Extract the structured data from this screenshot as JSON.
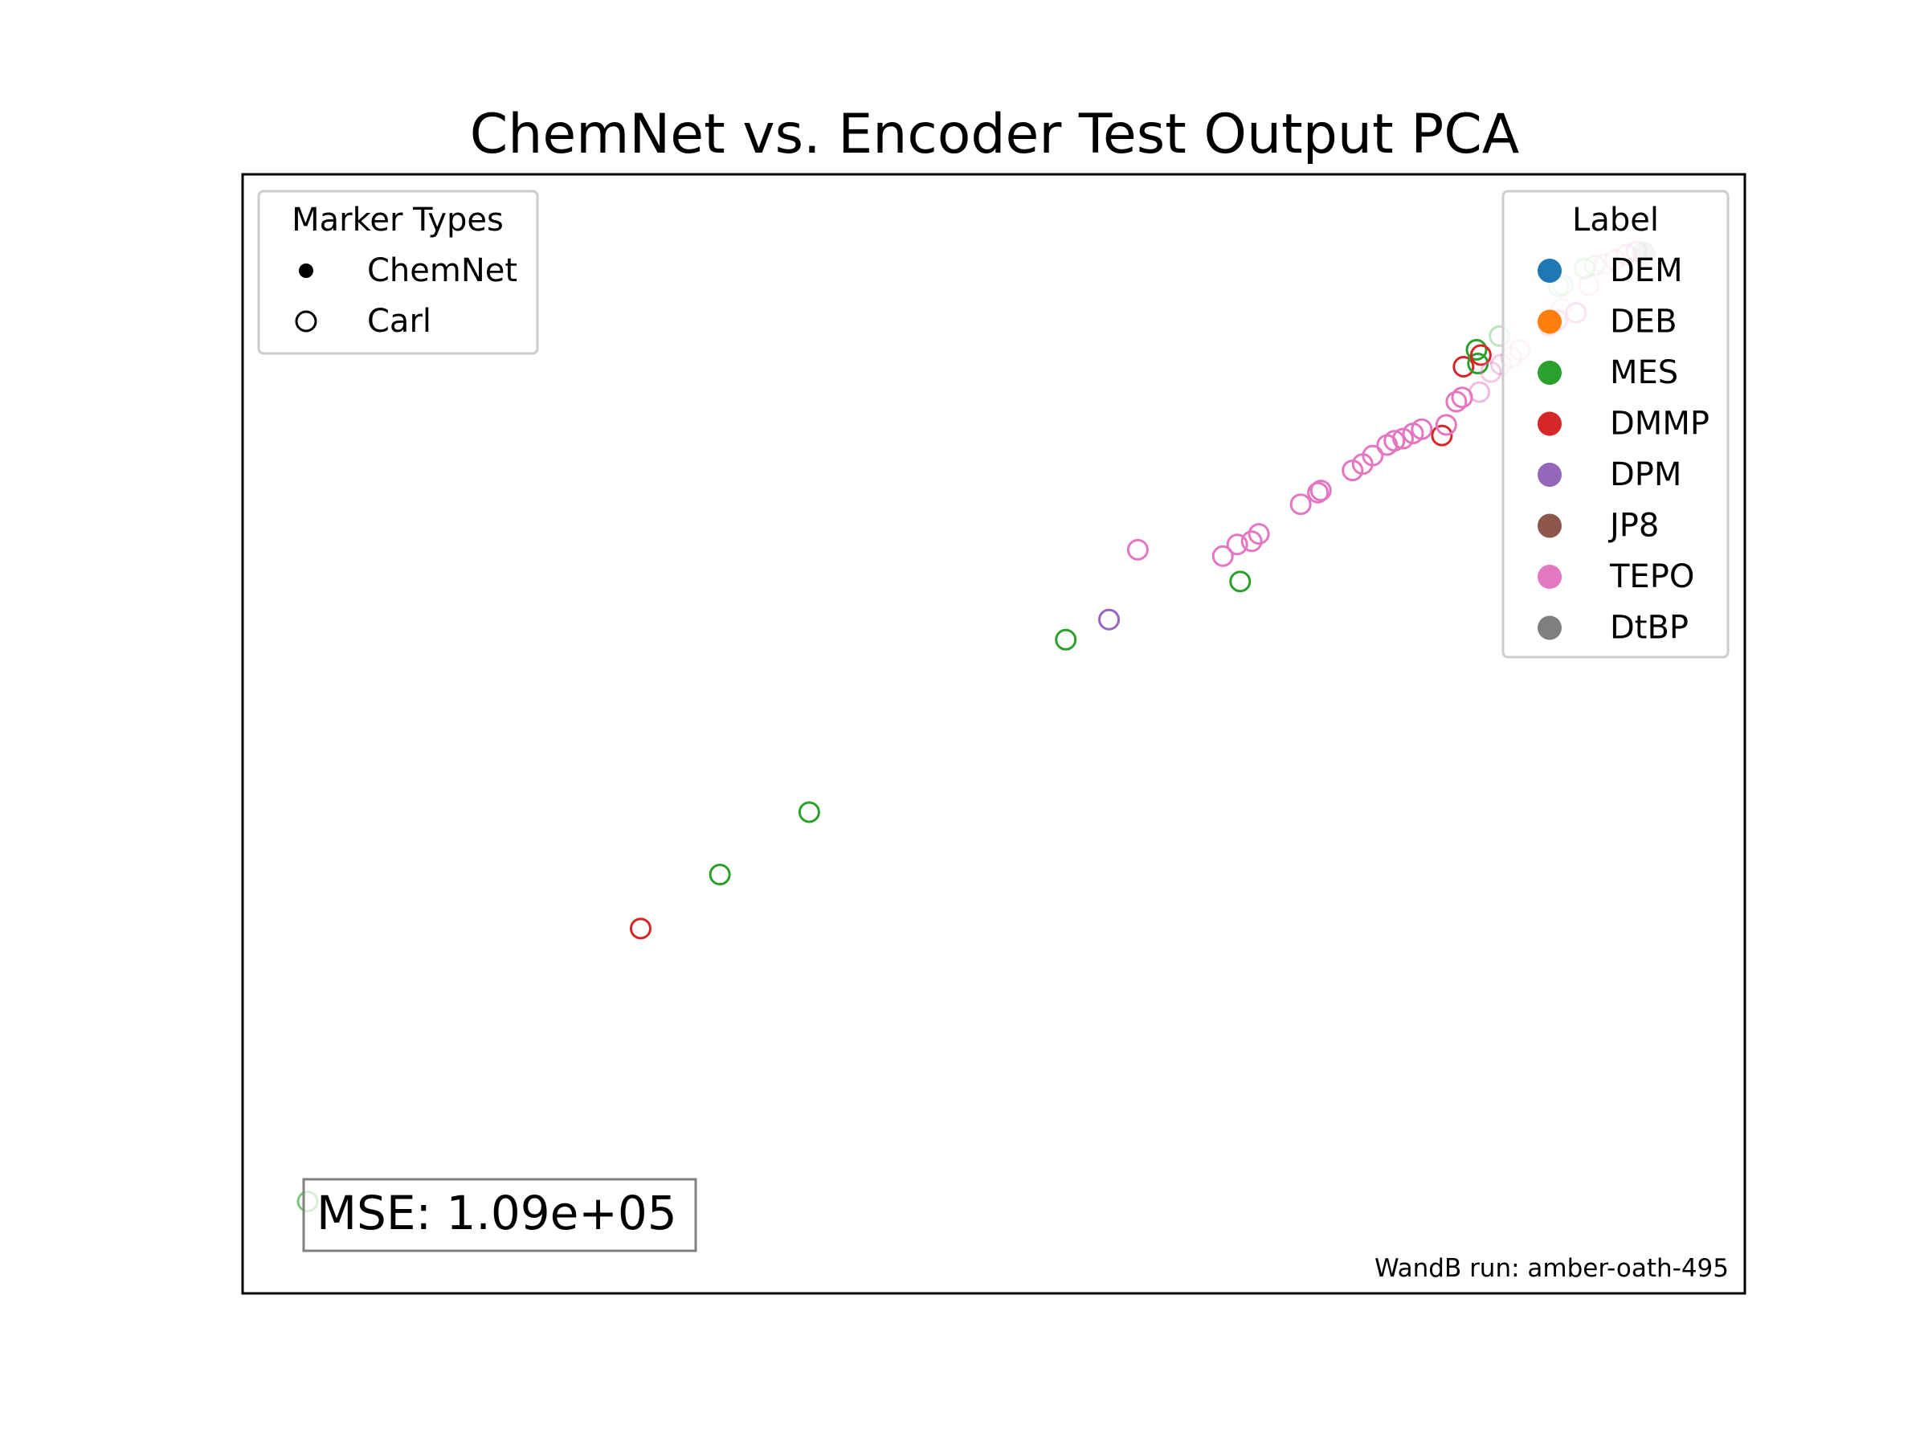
{
  "chart_data": {
    "type": "scatter",
    "title": "ChemNet vs. Encoder Test Output PCA",
    "xlabel": "",
    "ylabel": "",
    "grid": false,
    "axes_visible": false,
    "marker_legend": {
      "title": "Marker Types",
      "placement": "top-left",
      "items": [
        {
          "label": "ChemNet",
          "marker": "filled"
        },
        {
          "label": "Carl",
          "marker": "open"
        }
      ]
    },
    "label_legend": {
      "title": "Label",
      "placement": "top-right",
      "items": [
        {
          "label": "DEM",
          "color": "#1f77b4"
        },
        {
          "label": "DEB",
          "color": "#ff7f0e"
        },
        {
          "label": "MES",
          "color": "#2ca02c"
        },
        {
          "label": "DMMP",
          "color": "#d62728"
        },
        {
          "label": "DPM",
          "color": "#9467bd"
        },
        {
          "label": "JP8",
          "color": "#8c564b"
        },
        {
          "label": "TEPO",
          "color": "#e377c2"
        },
        {
          "label": "DtBP",
          "color": "#7f7f7f"
        }
      ]
    },
    "annotation": "MSE: 1.09e+05",
    "footer": "WandB run: amber-oath-495",
    "xlim": [
      0,
      100
    ],
    "ylim": [
      0,
      100
    ],
    "points": [
      {
        "x": 2.4,
        "y": 5.8,
        "label": "MES",
        "marker": "open",
        "alpha": 0.6
      },
      {
        "x": 25.5,
        "y": 31.6,
        "label": "DMMP",
        "marker": "open",
        "alpha": 1
      },
      {
        "x": 31.0,
        "y": 36.7,
        "label": "MES",
        "marker": "open",
        "alpha": 1
      },
      {
        "x": 37.2,
        "y": 42.6,
        "label": "MES",
        "marker": "open",
        "alpha": 1
      },
      {
        "x": 55.0,
        "y": 58.9,
        "label": "MES",
        "marker": "open",
        "alpha": 1
      },
      {
        "x": 58.0,
        "y": 60.8,
        "label": "DPM",
        "marker": "open",
        "alpha": 1
      },
      {
        "x": 60.0,
        "y": 67.4,
        "label": "TEPO",
        "marker": "open",
        "alpha": 1
      },
      {
        "x": 67.1,
        "y": 64.4,
        "label": "MES",
        "marker": "open",
        "alpha": 1
      },
      {
        "x": 65.9,
        "y": 66.8,
        "label": "TEPO",
        "marker": "open",
        "alpha": 1
      },
      {
        "x": 66.9,
        "y": 67.9,
        "label": "TEPO",
        "marker": "open",
        "alpha": 1
      },
      {
        "x": 67.9,
        "y": 68.2,
        "label": "TEPO",
        "marker": "open",
        "alpha": 1
      },
      {
        "x": 68.4,
        "y": 68.9,
        "label": "TEPO",
        "marker": "open",
        "alpha": 1
      },
      {
        "x": 71.3,
        "y": 71.7,
        "label": "TEPO",
        "marker": "open",
        "alpha": 1
      },
      {
        "x": 72.5,
        "y": 72.8,
        "label": "TEPO",
        "marker": "open",
        "alpha": 1
      },
      {
        "x": 72.7,
        "y": 73.0,
        "label": "TEPO",
        "marker": "open",
        "alpha": 1
      },
      {
        "x": 74.9,
        "y": 74.9,
        "label": "TEPO",
        "marker": "open",
        "alpha": 1
      },
      {
        "x": 75.6,
        "y": 75.5,
        "label": "TEPO",
        "marker": "open",
        "alpha": 1
      },
      {
        "x": 76.3,
        "y": 76.3,
        "label": "TEPO",
        "marker": "open",
        "alpha": 1
      },
      {
        "x": 77.3,
        "y": 77.3,
        "label": "TEPO",
        "marker": "open",
        "alpha": 1
      },
      {
        "x": 77.8,
        "y": 77.7,
        "label": "TEPO",
        "marker": "open",
        "alpha": 1
      },
      {
        "x": 78.4,
        "y": 77.9,
        "label": "TEPO",
        "marker": "open",
        "alpha": 1
      },
      {
        "x": 79.1,
        "y": 78.4,
        "label": "TEPO",
        "marker": "open",
        "alpha": 1
      },
      {
        "x": 79.7,
        "y": 78.8,
        "label": "TEPO",
        "marker": "open",
        "alpha": 1
      },
      {
        "x": 81.1,
        "y": 78.2,
        "label": "DMMP",
        "marker": "open",
        "alpha": 1
      },
      {
        "x": 81.4,
        "y": 79.2,
        "label": "TEPO",
        "marker": "open",
        "alpha": 1
      },
      {
        "x": 82.1,
        "y": 81.4,
        "label": "TEPO",
        "marker": "open",
        "alpha": 1
      },
      {
        "x": 82.5,
        "y": 81.8,
        "label": "TEPO",
        "marker": "open",
        "alpha": 1
      },
      {
        "x": 83.7,
        "y": 82.3,
        "label": "TEPO",
        "marker": "open",
        "alpha": 0.5
      },
      {
        "x": 82.6,
        "y": 84.7,
        "label": "DMMP",
        "marker": "open",
        "alpha": 1
      },
      {
        "x": 83.6,
        "y": 85.0,
        "label": "MES",
        "marker": "open",
        "alpha": 1
      },
      {
        "x": 83.5,
        "y": 86.3,
        "label": "MES",
        "marker": "open",
        "alpha": 1
      },
      {
        "x": 83.8,
        "y": 85.8,
        "label": "DMMP",
        "marker": "open",
        "alpha": 1
      },
      {
        "x": 84.5,
        "y": 84.2,
        "label": "TEPO",
        "marker": "open",
        "alpha": 0.4
      },
      {
        "x": 85.2,
        "y": 84.9,
        "label": "TEPO",
        "marker": "open",
        "alpha": 0.4
      },
      {
        "x": 85.9,
        "y": 85.6,
        "label": "TEPO",
        "marker": "open",
        "alpha": 0.4
      },
      {
        "x": 86.5,
        "y": 86.3,
        "label": "TEPO",
        "marker": "open",
        "alpha": 0.4
      },
      {
        "x": 85.1,
        "y": 87.6,
        "label": "MES",
        "marker": "open",
        "alpha": 0.3
      },
      {
        "x": 88.5,
        "y": 88.6,
        "label": "TEPO",
        "marker": "open",
        "alpha": 1
      },
      {
        "x": 89.1,
        "y": 89.1,
        "label": "TEPO",
        "marker": "open",
        "alpha": 1
      },
      {
        "x": 89.4,
        "y": 90.2,
        "label": "TEPO",
        "marker": "open",
        "alpha": 0.4
      },
      {
        "x": 90.4,
        "y": 89.8,
        "label": "TEPO",
        "marker": "open",
        "alpha": 1
      },
      {
        "x": 89.2,
        "y": 92.3,
        "label": "MES",
        "marker": "open",
        "alpha": 0.3
      },
      {
        "x": 89.5,
        "y": 92.4,
        "label": "MES",
        "marker": "open",
        "alpha": 0.3
      },
      {
        "x": 91.3,
        "y": 92.4,
        "label": "TEPO",
        "marker": "open",
        "alpha": 0.4
      },
      {
        "x": 91.0,
        "y": 94.0,
        "label": "MES",
        "marker": "open",
        "alpha": 0.4
      },
      {
        "x": 91.7,
        "y": 94.3,
        "label": "MES",
        "marker": "open",
        "alpha": 0.3
      },
      {
        "x": 92.4,
        "y": 94.4,
        "label": "TEPO",
        "marker": "open",
        "alpha": 0.4
      },
      {
        "x": 93.1,
        "y": 94.8,
        "label": "TEPO",
        "marker": "open",
        "alpha": 0.5
      },
      {
        "x": 93.9,
        "y": 95.3,
        "label": "TEPO",
        "marker": "open",
        "alpha": 0.6
      },
      {
        "x": 94.6,
        "y": 95.6,
        "label": "TEPO",
        "marker": "open",
        "alpha": 0.7
      },
      {
        "x": 95.1,
        "y": 95.4,
        "label": "DtBP",
        "marker": "filled",
        "alpha": 0.4
      }
    ]
  }
}
